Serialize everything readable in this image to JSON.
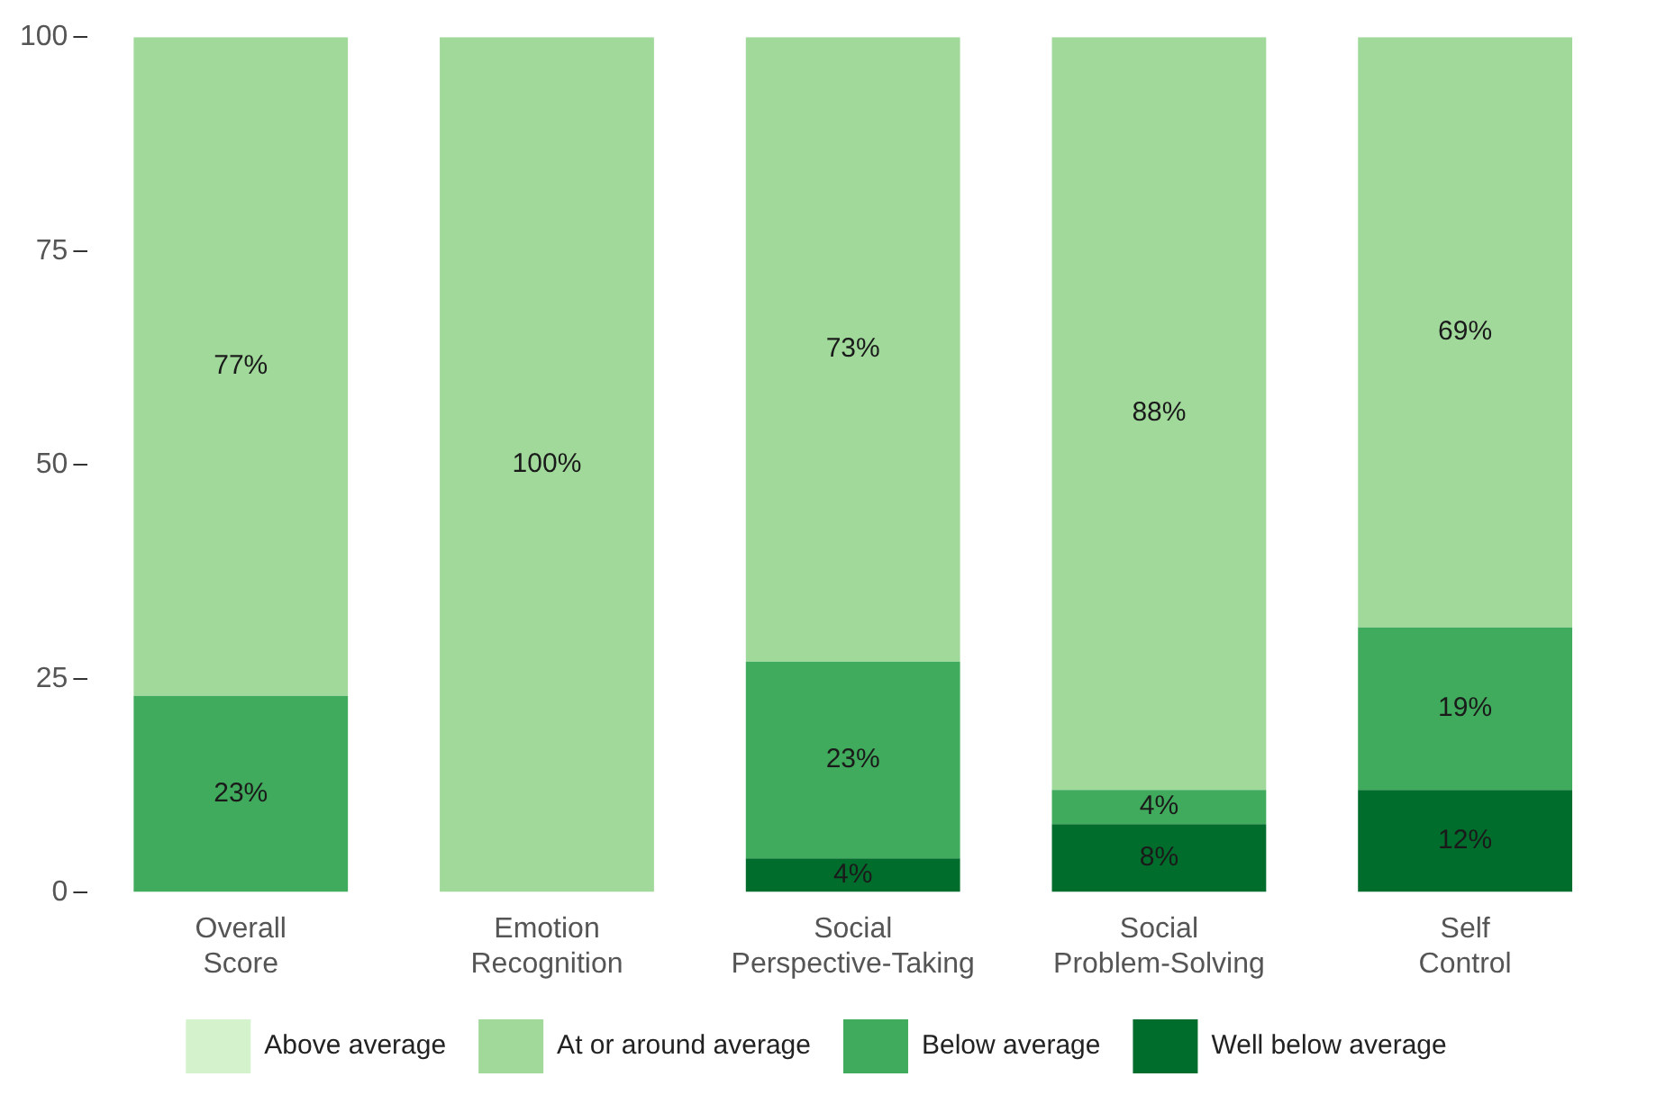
{
  "chart_data": {
    "type": "bar",
    "stacked": true,
    "categories": [
      "Overall Score",
      "Emotion Recognition",
      "Social Perspective-Taking",
      "Social Problem-Solving",
      "Self Control"
    ],
    "series": [
      {
        "name": "Well below average",
        "color": "#006d2c",
        "values": [
          0,
          0,
          4,
          8,
          12
        ],
        "value_labels": [
          null,
          null,
          "4%",
          "8%",
          "12%"
        ]
      },
      {
        "name": "Below average",
        "color": "#41ab5d",
        "values": [
          23,
          0,
          23,
          4,
          19
        ],
        "value_labels": [
          "23%",
          null,
          "23%",
          "4%",
          "19%"
        ]
      },
      {
        "name": "At or around average",
        "color": "#a1d99b",
        "values": [
          77,
          100,
          73,
          88,
          69
        ],
        "value_labels": [
          "77%",
          "100%",
          "73%",
          "88%",
          "69%"
        ]
      },
      {
        "name": "Above average",
        "color": "#d4f2cc",
        "values": [
          0,
          0,
          0,
          0,
          0
        ],
        "value_labels": [
          null,
          null,
          null,
          null,
          null
        ]
      }
    ],
    "ylim": [
      0,
      100
    ],
    "yticks": [
      0,
      25,
      50,
      75,
      100
    ],
    "grid": false,
    "legend": "bottom"
  }
}
